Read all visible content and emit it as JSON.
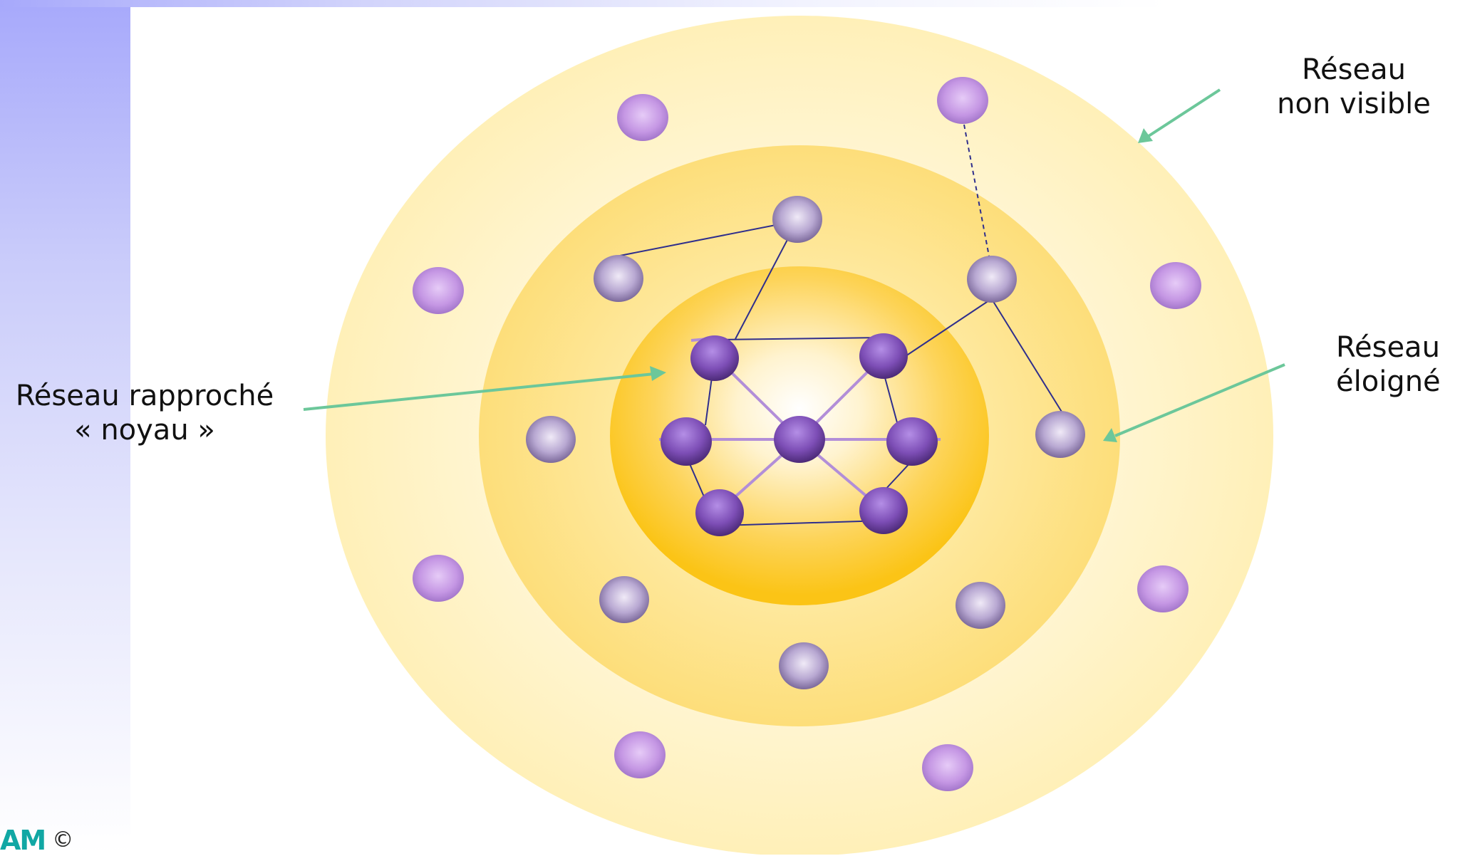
{
  "labels": {
    "core_line1": "Réseau rapproché",
    "core_line2": "« noyau »",
    "invisible_line1": "Réseau",
    "invisible_line2": "non visible",
    "distant_line1": "Réseau",
    "distant_line2": "éloigné"
  },
  "footer": {
    "logo": "AM",
    "copyright": "©"
  },
  "colors": {
    "outer_ring": "#fff2bf",
    "middle_ring": "#fde07c",
    "inner_core": "#fbc416",
    "core_node": "#7f4fb7",
    "middle_node": "#a38fc0",
    "outer_node": "#c59be4",
    "link": "#2f2e8c",
    "core_link": "#b28ed8",
    "arrow": "#6cc79a",
    "side_band": "#a7a9fb"
  }
}
